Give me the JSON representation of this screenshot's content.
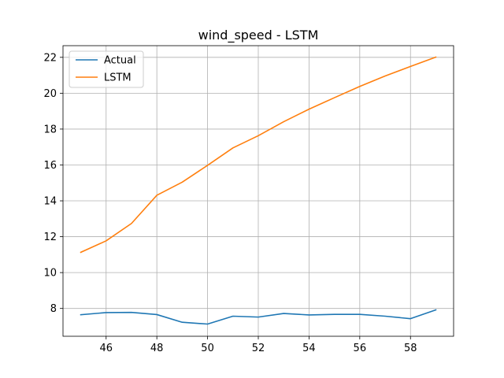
{
  "chart_data": {
    "type": "line",
    "title": "wind_speed - LSTM",
    "xlabel": "",
    "ylabel": "",
    "xlim": [
      44.3,
      59.7
    ],
    "ylim": [
      6.45,
      22.65
    ],
    "xticks": [
      46,
      48,
      50,
      52,
      54,
      56,
      58
    ],
    "yticks": [
      8,
      10,
      12,
      14,
      16,
      18,
      20,
      22
    ],
    "grid": true,
    "legend": "top-left",
    "x": [
      45,
      46,
      47,
      48,
      49,
      50,
      51,
      52,
      53,
      54,
      55,
      56,
      57,
      58,
      59
    ],
    "series": [
      {
        "name": "Actual",
        "color": "#1f77b4",
        "values": [
          7.65,
          7.77,
          7.78,
          7.66,
          7.23,
          7.13,
          7.57,
          7.52,
          7.72,
          7.64,
          7.67,
          7.67,
          7.57,
          7.43,
          7.92
        ]
      },
      {
        "name": "LSTM",
        "color": "#ff7f0e",
        "values": [
          11.13,
          11.77,
          12.74,
          14.31,
          15.04,
          15.98,
          16.95,
          17.63,
          18.41,
          19.11,
          19.75,
          20.38,
          20.96,
          21.49,
          22.01
        ]
      }
    ]
  }
}
